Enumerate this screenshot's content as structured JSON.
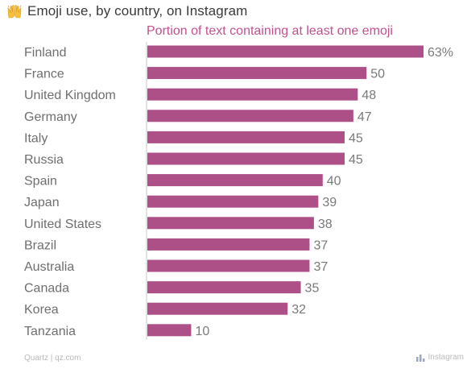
{
  "header": {
    "title": "Emoji use, by country, on Instagram",
    "title_icon": "raised-hands-icon",
    "subtitle": "Portion of text containing at least one emoji"
  },
  "footer": {
    "credit": "Quartz | qz.com",
    "source": "Instagram",
    "source_icon": "bar-chart-icon"
  },
  "colors": {
    "bar": "#ad5088",
    "label": "#6f6f6f",
    "value": "#7a7a7a",
    "subtitle": "#c05290",
    "axis": "#c8c8c8"
  },
  "chart_data": {
    "type": "bar",
    "orientation": "horizontal",
    "categories": [
      "Finland",
      "France",
      "United Kingdom",
      "Germany",
      "Italy",
      "Russia",
      "Spain",
      "Japan",
      "United States",
      "Brazil",
      "Australia",
      "Canada",
      "Korea",
      "Tanzania"
    ],
    "values": [
      63,
      50,
      48,
      47,
      45,
      45,
      40,
      39,
      38,
      37,
      37,
      35,
      32,
      10
    ],
    "value_labels": [
      "63%",
      "50",
      "48",
      "47",
      "45",
      "45",
      "40",
      "39",
      "38",
      "37",
      "37",
      "35",
      "32",
      "10"
    ],
    "title": "Emoji use, by country, on Instagram",
    "subtitle": "Portion of text containing at least one emoji",
    "xlim": [
      0,
      63
    ],
    "grid": false,
    "legend": "none"
  }
}
